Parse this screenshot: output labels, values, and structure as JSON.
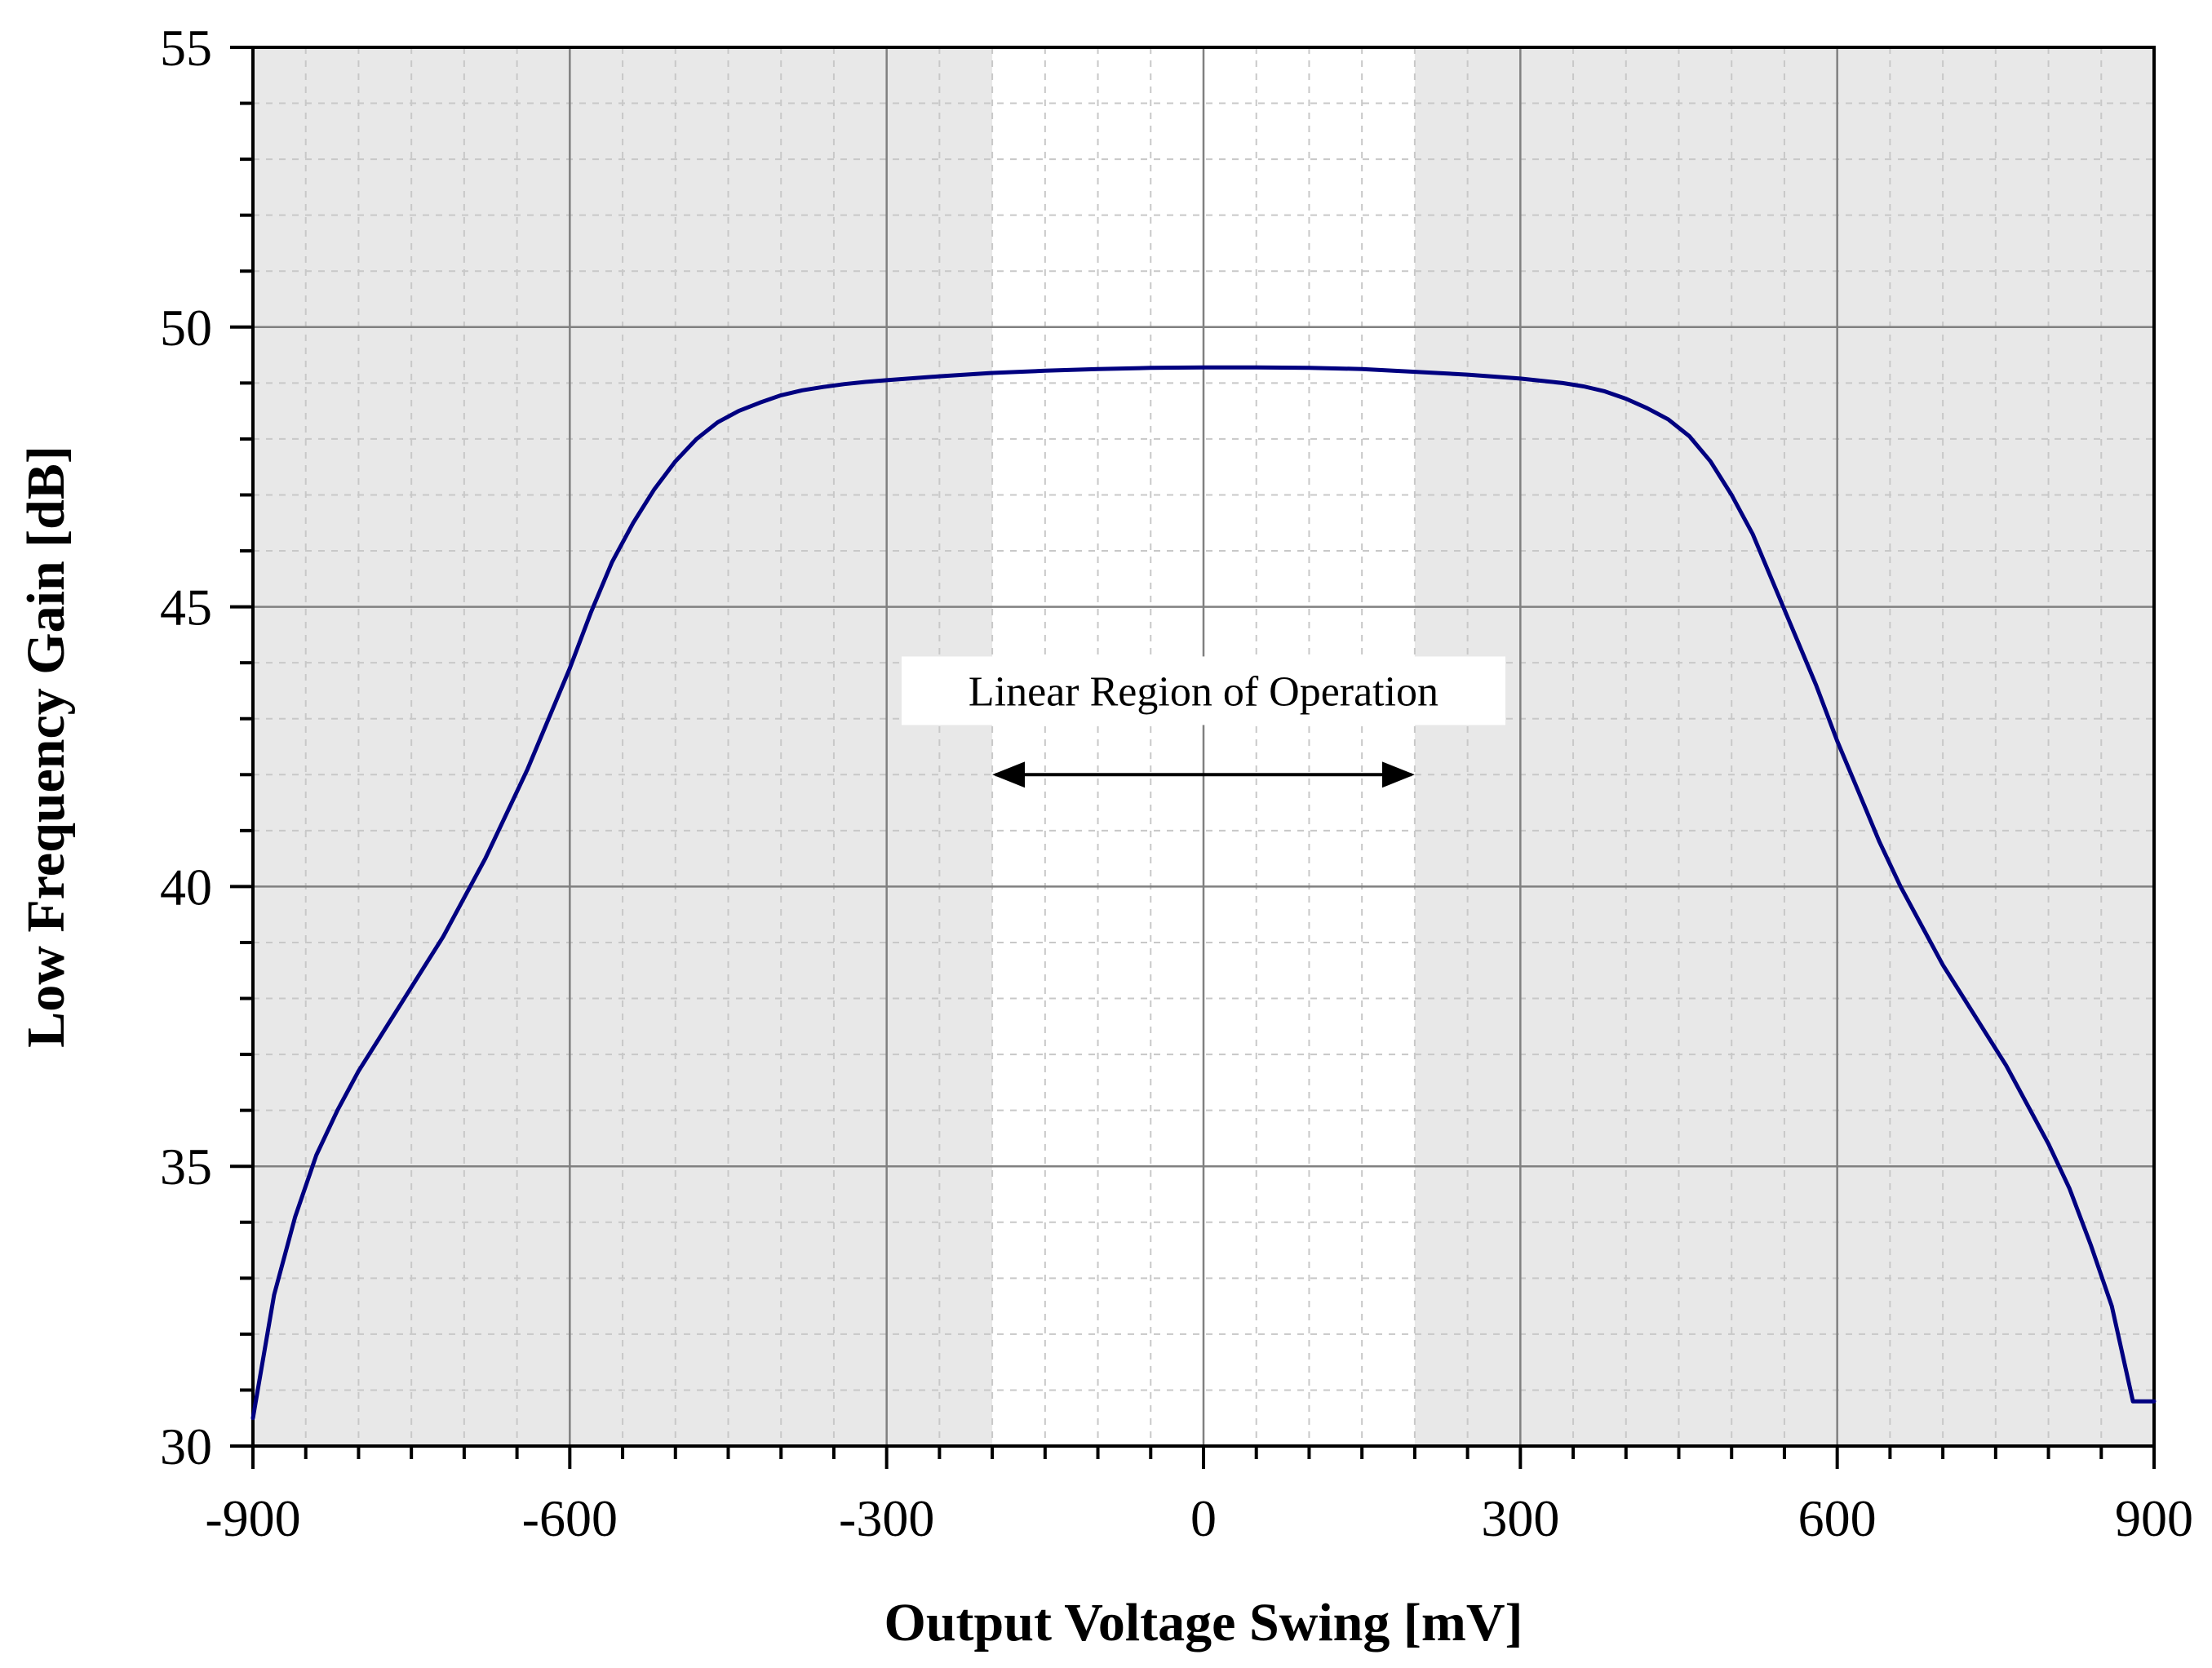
{
  "chart_data": {
    "type": "line",
    "title": "",
    "xlabel": "Output Voltage Swing [mV]",
    "ylabel": "Low Frequency Gain [dB]",
    "xlim": [
      -900,
      900
    ],
    "ylim": [
      30,
      55
    ],
    "xticks": [
      -900,
      -600,
      -300,
      0,
      300,
      600,
      900
    ],
    "xtick_labels": [
      "-900",
      "-600",
      "-300",
      "0",
      "300",
      "600",
      "900"
    ],
    "yticks": [
      30,
      35,
      40,
      45,
      50,
      55
    ],
    "ytick_labels": [
      "30",
      "35",
      "40",
      "45",
      "50",
      "55"
    ],
    "x_minor_step": 50,
    "y_minor_step": 1,
    "grid": true,
    "highlight_region": {
      "x_range": [
        -200,
        200
      ],
      "color": "#ffffff"
    },
    "shaded_background": "#e8e8e8",
    "annotation": {
      "text": "Linear Region of Operation",
      "x_center": 0,
      "y": 43.5,
      "arrow": {
        "x_start": -200,
        "x_end": 200,
        "y": 42
      }
    },
    "series": [
      {
        "color": "#000080",
        "x": [
          -900,
          -880,
          -860,
          -840,
          -820,
          -800,
          -780,
          -760,
          -740,
          -720,
          -700,
          -680,
          -660,
          -640,
          -620,
          -600,
          -580,
          -560,
          -540,
          -520,
          -500,
          -480,
          -460,
          -440,
          -420,
          -400,
          -380,
          -360,
          -340,
          -320,
          -300,
          -250,
          -200,
          -150,
          -100,
          -50,
          0,
          50,
          100,
          150,
          200,
          250,
          300,
          320,
          340,
          360,
          380,
          400,
          420,
          440,
          460,
          480,
          500,
          520,
          540,
          560,
          580,
          600,
          620,
          640,
          660,
          680,
          700,
          720,
          740,
          760,
          780,
          800,
          820,
          840,
          860,
          880,
          900
        ],
        "values": [
          30.5,
          32.7,
          34.1,
          35.2,
          36.0,
          36.7,
          37.3,
          37.9,
          38.5,
          39.1,
          39.8,
          40.5,
          41.3,
          42.1,
          43.0,
          43.9,
          44.9,
          45.8,
          46.5,
          47.1,
          47.6,
          48.0,
          48.3,
          48.5,
          48.65,
          48.78,
          48.87,
          48.93,
          48.98,
          49.02,
          49.05,
          49.12,
          49.18,
          49.22,
          49.25,
          49.27,
          49.28,
          49.28,
          49.27,
          49.25,
          49.2,
          49.15,
          49.08,
          49.04,
          49.0,
          48.94,
          48.85,
          48.72,
          48.55,
          48.35,
          48.05,
          47.6,
          47.0,
          46.3,
          45.4,
          44.5,
          43.6,
          42.6,
          41.7,
          40.8,
          40.0,
          39.3,
          38.6,
          38.0,
          37.4,
          36.8,
          36.1,
          35.4,
          34.6,
          33.6,
          32.5,
          30.8,
          30.8
        ]
      }
    ]
  }
}
